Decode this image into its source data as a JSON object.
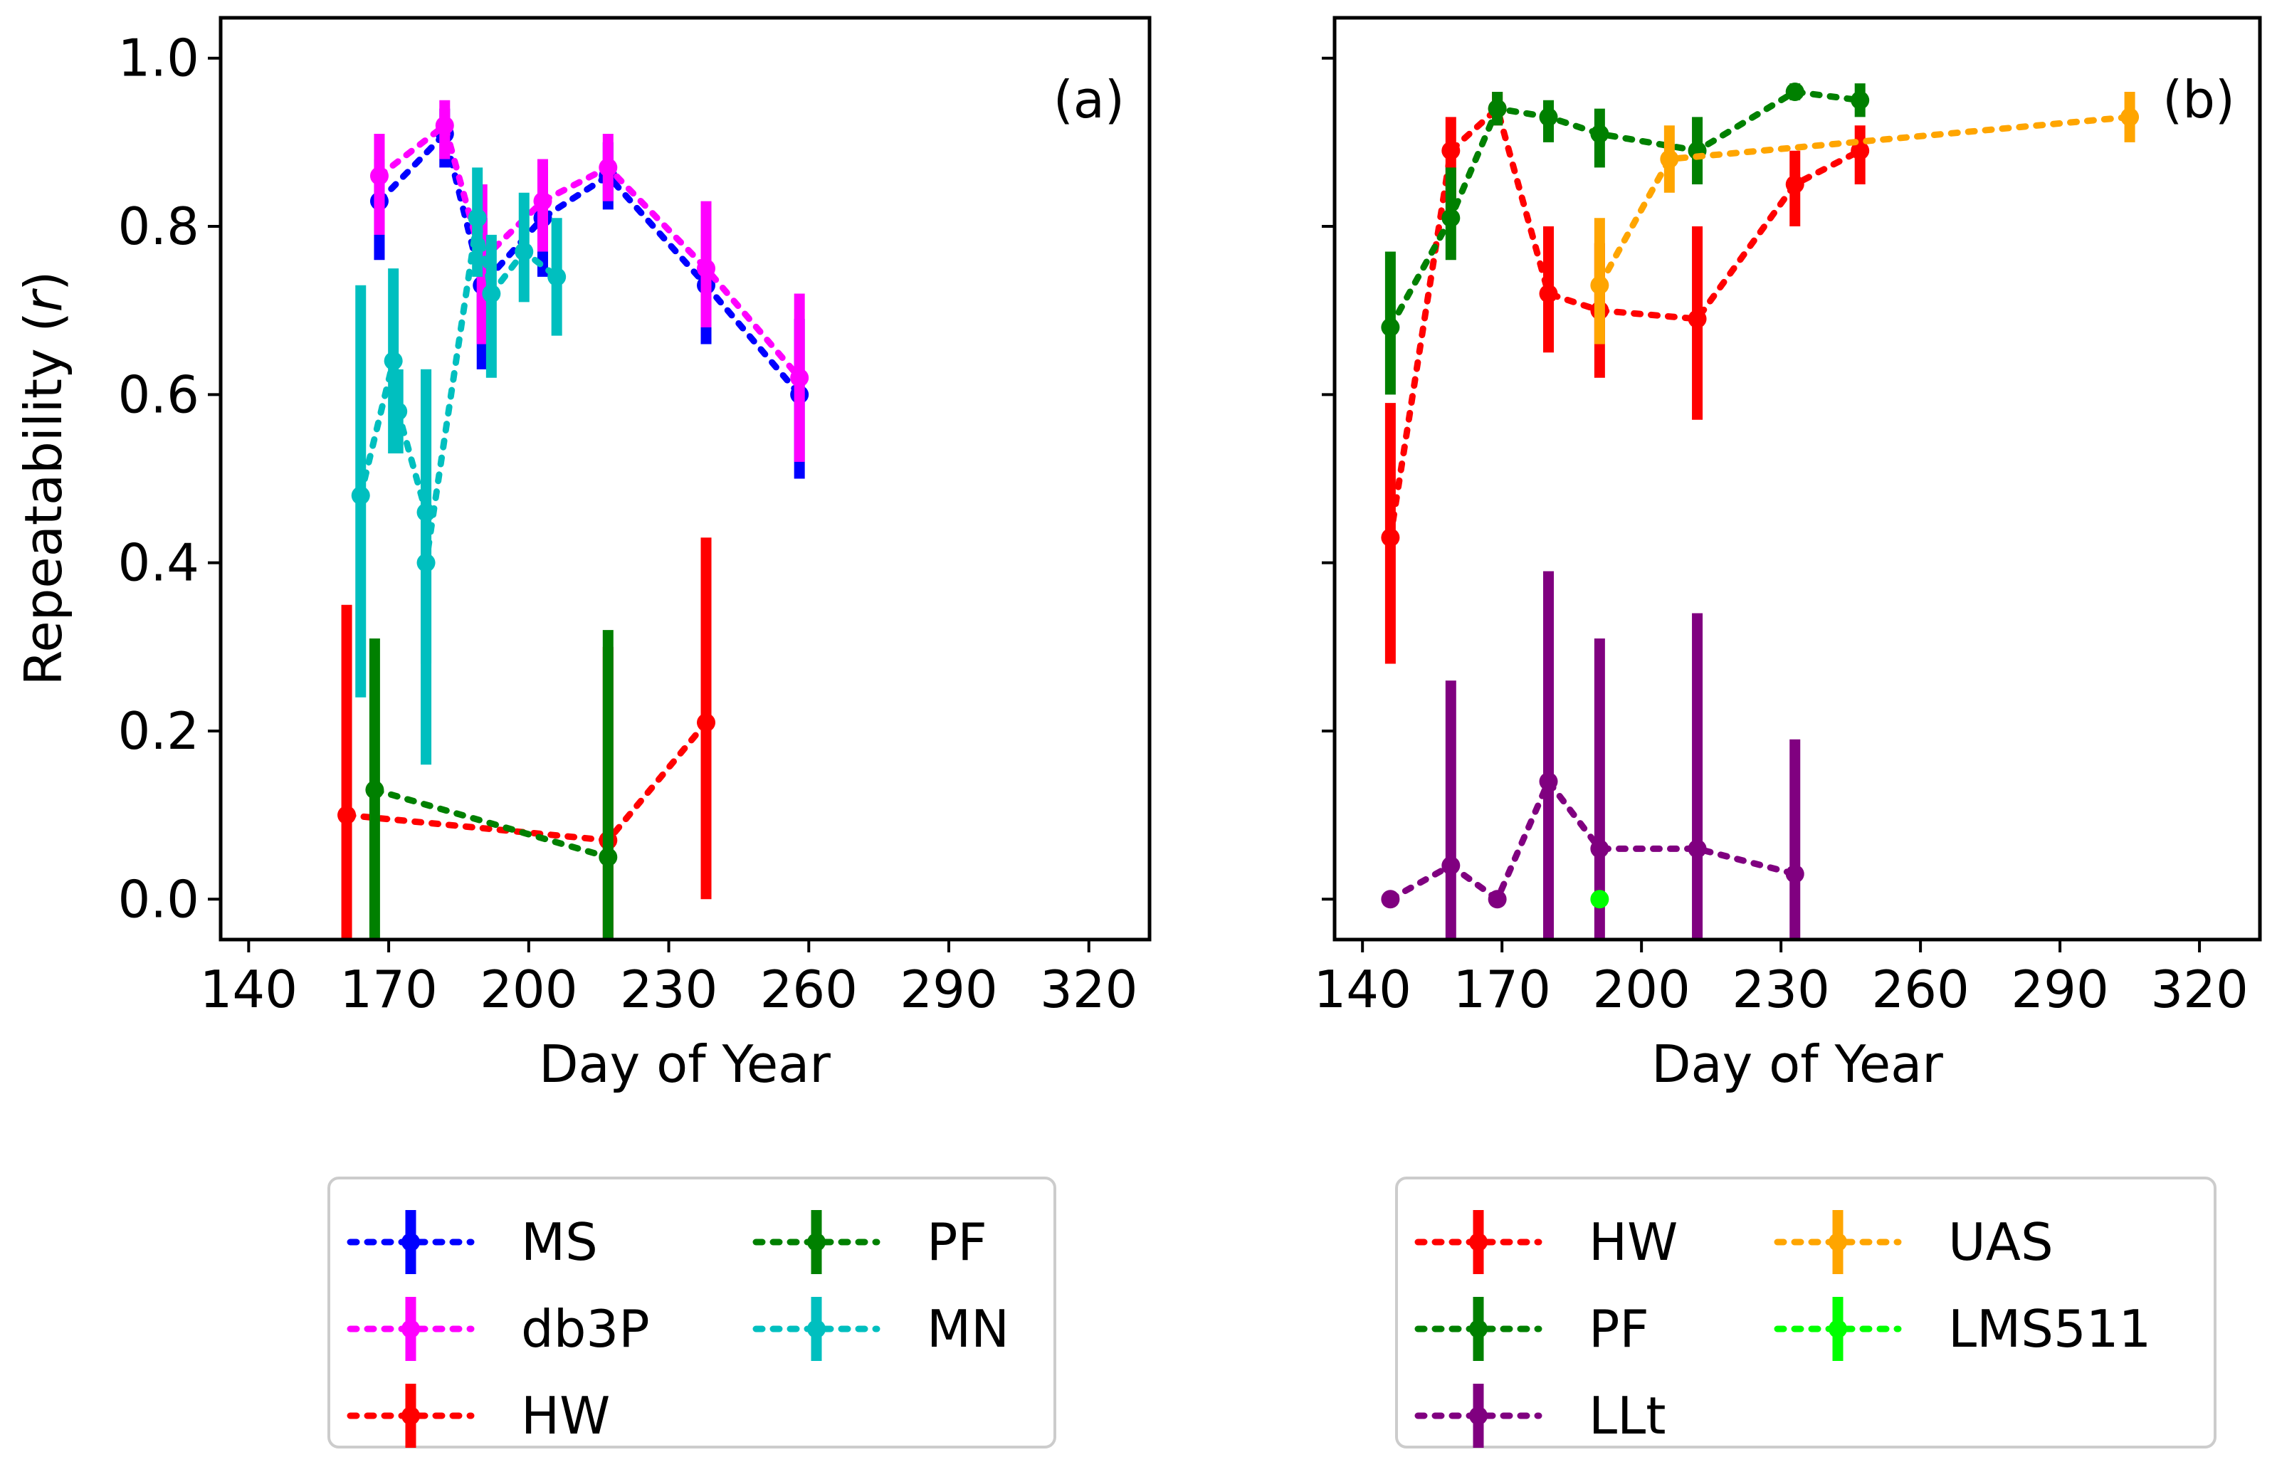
{
  "chart_data": [
    {
      "type": "scatter",
      "panel_label": "(a)",
      "xlabel": "Day of Year",
      "ylabel": "Repeatability (",
      "ylabel_italic": "r",
      "ylabel_close": ")",
      "xlim": [
        134,
        333
      ],
      "ylim": [
        -0.048,
        1.048
      ],
      "xticks": [
        140,
        170,
        200,
        230,
        260,
        290,
        320
      ],
      "yticks": [
        0.0,
        0.2,
        0.4,
        0.6,
        0.8,
        1.0
      ],
      "ytick_labels": [
        "0.0",
        "0.2",
        "0.4",
        "0.6",
        "0.8",
        "1.0"
      ],
      "legend": {
        "placement": "below",
        "columns": 2
      },
      "series": [
        {
          "name": "MS",
          "color": "#0000ff",
          "points": [
            {
              "x": 168,
              "y": 0.83,
              "lo": 0.76,
              "hi": 0.88
            },
            {
              "x": 182,
              "y": 0.91,
              "lo": 0.87,
              "hi": 0.94
            },
            {
              "x": 190,
              "y": 0.73,
              "lo": 0.63,
              "hi": 0.81
            },
            {
              "x": 203,
              "y": 0.81,
              "lo": 0.74,
              "hi": 0.87
            },
            {
              "x": 217,
              "y": 0.86,
              "lo": 0.82,
              "hi": 0.9
            },
            {
              "x": 238,
              "y": 0.73,
              "lo": 0.66,
              "hi": 0.79
            },
            {
              "x": 258,
              "y": 0.6,
              "lo": 0.5,
              "hi": 0.69
            }
          ]
        },
        {
          "name": "db3P",
          "color": "#ff00ff",
          "points": [
            {
              "x": 168,
              "y": 0.86,
              "lo": 0.79,
              "hi": 0.91
            },
            {
              "x": 182,
              "y": 0.92,
              "lo": 0.88,
              "hi": 0.95
            },
            {
              "x": 190,
              "y": 0.76,
              "lo": 0.66,
              "hi": 0.85
            },
            {
              "x": 203,
              "y": 0.83,
              "lo": 0.77,
              "hi": 0.88
            },
            {
              "x": 217,
              "y": 0.87,
              "lo": 0.83,
              "hi": 0.91
            },
            {
              "x": 238,
              "y": 0.75,
              "lo": 0.68,
              "hi": 0.83
            },
            {
              "x": 258,
              "y": 0.62,
              "lo": 0.52,
              "hi": 0.72
            }
          ]
        },
        {
          "name": "HW",
          "color": "#ff0000",
          "points": [
            {
              "x": 161,
              "y": 0.1,
              "lo": -0.048,
              "hi": 0.35
            },
            {
              "x": 217,
              "y": 0.07,
              "lo": -0.048,
              "hi": 0.3
            },
            {
              "x": 238,
              "y": 0.21,
              "lo": 0.0,
              "hi": 0.43
            }
          ]
        },
        {
          "name": "PF",
          "color": "#008000",
          "points": [
            {
              "x": 167,
              "y": 0.13,
              "lo": -0.048,
              "hi": 0.31
            },
            {
              "x": 217,
              "y": 0.05,
              "lo": -0.048,
              "hi": 0.32
            }
          ]
        },
        {
          "name": "MN",
          "color": "#00bfbf",
          "points": [
            {
              "x": 164,
              "y": 0.48,
              "lo": 0.24,
              "hi": 0.73
            },
            {
              "x": 171,
              "y": 0.64,
              "lo": 0.53,
              "hi": 0.75
            },
            {
              "x": 172,
              "y": 0.58,
              "lo": 0.53,
              "hi": 0.63
            },
            {
              "x": 178,
              "y": 0.46,
              "lo": 0.28,
              "hi": 0.63
            },
            {
              "x": 178,
              "y": 0.4,
              "lo": 0.16,
              "hi": 0.63
            },
            {
              "x": 189,
              "y": 0.81,
              "lo": 0.74,
              "hi": 0.87
            },
            {
              "x": 192,
              "y": 0.72,
              "lo": 0.62,
              "hi": 0.79
            },
            {
              "x": 199,
              "y": 0.77,
              "lo": 0.71,
              "hi": 0.84
            },
            {
              "x": 206,
              "y": 0.74,
              "lo": 0.67,
              "hi": 0.81
            }
          ]
        }
      ]
    },
    {
      "type": "scatter",
      "panel_label": "(b)",
      "xlabel": "Day of Year",
      "ylabel": "",
      "xlim": [
        134,
        333
      ],
      "ylim": [
        -0.048,
        1.048
      ],
      "xticks": [
        140,
        170,
        200,
        230,
        260,
        290,
        320
      ],
      "yticks": [
        0.0,
        0.2,
        0.4,
        0.6,
        0.8,
        1.0
      ],
      "ytick_labels": [],
      "legend": {
        "placement": "below",
        "columns": 2
      },
      "series": [
        {
          "name": "HW",
          "color": "#ff0000",
          "points": [
            {
              "x": 146,
              "y": 0.43,
              "lo": 0.28,
              "hi": 0.59
            },
            {
              "x": 159,
              "y": 0.89,
              "lo": 0.83,
              "hi": 0.93
            },
            {
              "x": 169,
              "y": 0.94,
              "lo": 0.92,
              "hi": 0.96
            },
            {
              "x": 180,
              "y": 0.72,
              "lo": 0.65,
              "hi": 0.8
            },
            {
              "x": 191,
              "y": 0.7,
              "lo": 0.62,
              "hi": 0.78
            },
            {
              "x": 212,
              "y": 0.69,
              "lo": 0.57,
              "hi": 0.8
            },
            {
              "x": 233,
              "y": 0.85,
              "lo": 0.8,
              "hi": 0.89
            },
            {
              "x": 247,
              "y": 0.89,
              "lo": 0.85,
              "hi": 0.92
            }
          ]
        },
        {
          "name": "PF",
          "color": "#008000",
          "points": [
            {
              "x": 146,
              "y": 0.68,
              "lo": 0.6,
              "hi": 0.77
            },
            {
              "x": 159,
              "y": 0.81,
              "lo": 0.76,
              "hi": 0.87
            },
            {
              "x": 169,
              "y": 0.94,
              "lo": 0.92,
              "hi": 0.96
            },
            {
              "x": 180,
              "y": 0.93,
              "lo": 0.9,
              "hi": 0.95
            },
            {
              "x": 191,
              "y": 0.91,
              "lo": 0.87,
              "hi": 0.94
            },
            {
              "x": 212,
              "y": 0.89,
              "lo": 0.85,
              "hi": 0.93
            },
            {
              "x": 233,
              "y": 0.96,
              "lo": 0.95,
              "hi": 0.97
            },
            {
              "x": 247,
              "y": 0.95,
              "lo": 0.93,
              "hi": 0.97
            }
          ]
        },
        {
          "name": "LLt",
          "color": "#800080",
          "points": [
            {
              "x": 146,
              "y": 0.0,
              "lo": 0.0,
              "hi": 0.0
            },
            {
              "x": 159,
              "y": 0.04,
              "lo": -0.048,
              "hi": 0.26
            },
            {
              "x": 169,
              "y": 0.0,
              "lo": 0.0,
              "hi": 0.0
            },
            {
              "x": 180,
              "y": 0.14,
              "lo": -0.048,
              "hi": 0.39
            },
            {
              "x": 191,
              "y": 0.06,
              "lo": -0.048,
              "hi": 0.31
            },
            {
              "x": 212,
              "y": 0.06,
              "lo": -0.048,
              "hi": 0.34
            },
            {
              "x": 233,
              "y": 0.03,
              "lo": -0.048,
              "hi": 0.19
            }
          ]
        },
        {
          "name": "UAS",
          "color": "#ffa500",
          "points": [
            {
              "x": 191,
              "y": 0.73,
              "lo": 0.66,
              "hi": 0.81
            },
            {
              "x": 206,
              "y": 0.88,
              "lo": 0.84,
              "hi": 0.92
            },
            {
              "x": 305,
              "y": 0.93,
              "lo": 0.9,
              "hi": 0.96
            }
          ]
        },
        {
          "name": "LMS511",
          "color": "#00ff00",
          "points": [
            {
              "x": 191,
              "y": 0.0,
              "lo": 0.0,
              "hi": 0.0
            }
          ]
        }
      ]
    }
  ]
}
